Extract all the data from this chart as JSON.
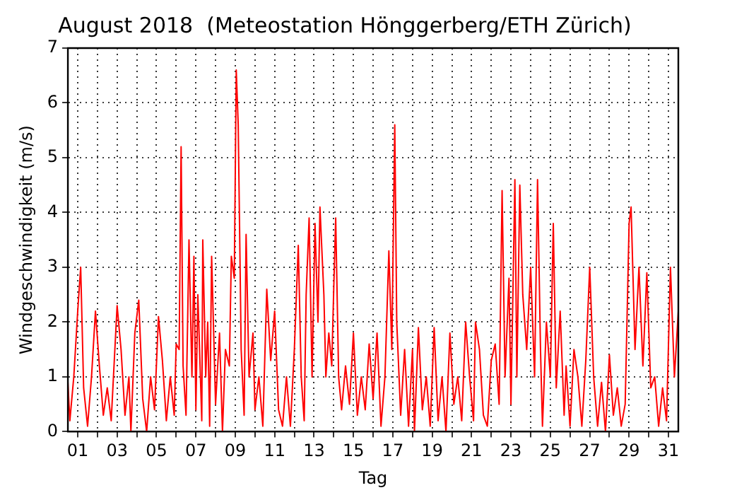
{
  "chart_data": {
    "type": "line",
    "title": "August 2018  (Meteostation Hönggerberg/ETH Zürich)",
    "xlabel": "Tag",
    "ylabel": "Windgeschwindigkeit (m/s)",
    "xlim": [
      0.5,
      31.5
    ],
    "ylim": [
      0,
      7
    ],
    "yticks": [
      0,
      1,
      2,
      3,
      4,
      5,
      6,
      7
    ],
    "xticks": [
      {
        "value": 1,
        "label": "01"
      },
      {
        "value": 2,
        "label": null
      },
      {
        "value": 3,
        "label": "03"
      },
      {
        "value": 4,
        "label": null
      },
      {
        "value": 5,
        "label": "05"
      },
      {
        "value": 6,
        "label": null
      },
      {
        "value": 7,
        "label": "07"
      },
      {
        "value": 8,
        "label": null
      },
      {
        "value": 9,
        "label": "09"
      },
      {
        "value": 10,
        "label": null
      },
      {
        "value": 11,
        "label": "11"
      },
      {
        "value": 12,
        "label": null
      },
      {
        "value": 13,
        "label": "13"
      },
      {
        "value": 14,
        "label": null
      },
      {
        "value": 15,
        "label": "15"
      },
      {
        "value": 16,
        "label": null
      },
      {
        "value": 17,
        "label": "17"
      },
      {
        "value": 18,
        "label": null
      },
      {
        "value": 19,
        "label": "19"
      },
      {
        "value": 20,
        "label": null
      },
      {
        "value": 21,
        "label": "21"
      },
      {
        "value": 22,
        "label": null
      },
      {
        "value": 23,
        "label": "23"
      },
      {
        "value": 24,
        "label": null
      },
      {
        "value": 25,
        "label": "25"
      },
      {
        "value": 26,
        "label": null
      },
      {
        "value": 27,
        "label": "27"
      },
      {
        "value": 28,
        "label": null
      },
      {
        "value": 29,
        "label": "29"
      },
      {
        "value": 30,
        "label": null
      },
      {
        "value": 31,
        "label": "31"
      }
    ],
    "grid": true,
    "legend": false,
    "marker": "none",
    "line_style": "solid",
    "series": [
      {
        "color": "#ff0000",
        "x": [
          0.5,
          0.6,
          0.8,
          1.0,
          1.15,
          1.3,
          1.5,
          1.7,
          1.9,
          2.1,
          2.3,
          2.5,
          2.7,
          3.0,
          3.2,
          3.4,
          3.6,
          3.7,
          3.9,
          4.1,
          4.3,
          4.5,
          4.7,
          4.9,
          5.1,
          5.3,
          5.5,
          5.7,
          5.9,
          6.0,
          6.15,
          6.25,
          6.35,
          6.5,
          6.65,
          6.8,
          6.9,
          7.0,
          7.1,
          7.3,
          7.35,
          7.5,
          7.6,
          7.7,
          7.8,
          8.0,
          8.2,
          8.35,
          8.5,
          8.7,
          8.8,
          8.95,
          9.05,
          9.15,
          9.3,
          9.45,
          9.55,
          9.7,
          9.9,
          10.0,
          10.2,
          10.4,
          10.6,
          10.8,
          11.0,
          11.2,
          11.4,
          11.6,
          11.8,
          12.0,
          12.2,
          12.35,
          12.5,
          12.6,
          12.75,
          12.9,
          13.05,
          13.2,
          13.3,
          13.5,
          13.6,
          13.75,
          13.9,
          14.0,
          14.1,
          14.25,
          14.4,
          14.6,
          14.8,
          15.0,
          15.2,
          15.4,
          15.6,
          15.8,
          16.0,
          16.2,
          16.4,
          16.6,
          16.8,
          16.95,
          17.1,
          17.2,
          17.4,
          17.6,
          17.8,
          18.0,
          18.1,
          18.3,
          18.5,
          18.7,
          18.9,
          19.1,
          19.3,
          19.5,
          19.7,
          19.9,
          20.1,
          20.3,
          20.5,
          20.7,
          20.9,
          21.1,
          21.2,
          21.4,
          21.6,
          21.8,
          22.0,
          22.2,
          22.4,
          22.55,
          22.7,
          22.9,
          23.0,
          23.2,
          23.3,
          23.45,
          23.6,
          23.8,
          24.0,
          24.2,
          24.35,
          24.5,
          24.6,
          24.8,
          25.0,
          25.15,
          25.3,
          25.5,
          25.7,
          25.8,
          26.0,
          26.2,
          26.4,
          26.6,
          26.8,
          27.0,
          27.2,
          27.4,
          27.6,
          27.8,
          28.0,
          28.2,
          28.4,
          28.6,
          28.8,
          29.0,
          29.1,
          29.3,
          29.5,
          29.7,
          29.9,
          30.1,
          30.3,
          30.5,
          30.7,
          30.9,
          31.1,
          31.3,
          31.5
        ],
        "values": [
          0.9,
          0.2,
          1.0,
          2.2,
          3.0,
          0.8,
          0.1,
          1.0,
          2.2,
          1.2,
          0.3,
          0.8,
          0.2,
          2.3,
          1.5,
          0.3,
          1.0,
          0.0,
          1.8,
          2.4,
          0.6,
          0.0,
          1.0,
          0.4,
          2.1,
          1.3,
          0.2,
          1.0,
          0.3,
          1.6,
          1.5,
          5.2,
          1.2,
          0.3,
          3.5,
          1.0,
          3.2,
          0.4,
          2.5,
          0.2,
          3.5,
          1.0,
          2.0,
          0.1,
          3.2,
          0.5,
          1.8,
          0.0,
          1.5,
          1.2,
          3.2,
          2.8,
          6.6,
          5.6,
          1.5,
          0.3,
          3.6,
          1.0,
          1.8,
          0.4,
          1.0,
          0.1,
          2.6,
          1.3,
          2.2,
          0.4,
          0.1,
          1.0,
          0.1,
          1.5,
          3.4,
          1.0,
          0.2,
          2.5,
          3.9,
          1.0,
          3.8,
          2.0,
          4.1,
          2.5,
          1.0,
          1.8,
          1.2,
          2.6,
          3.9,
          1.0,
          0.4,
          1.2,
          0.5,
          1.8,
          0.3,
          1.0,
          0.4,
          1.6,
          0.6,
          1.8,
          0.1,
          1.0,
          3.3,
          1.5,
          5.6,
          2.0,
          0.3,
          1.5,
          0.1,
          1.5,
          0.0,
          1.9,
          0.4,
          1.0,
          0.1,
          1.9,
          0.2,
          1.0,
          0.0,
          1.8,
          0.5,
          1.0,
          0.2,
          2.0,
          1.0,
          0.2,
          2.0,
          1.5,
          0.3,
          0.1,
          1.3,
          1.6,
          0.5,
          4.4,
          1.0,
          2.8,
          0.5,
          4.6,
          1.0,
          4.5,
          2.5,
          1.5,
          3.0,
          1.0,
          4.6,
          1.5,
          0.1,
          2.0,
          1.0,
          3.8,
          0.8,
          2.2,
          0.3,
          1.2,
          0.1,
          1.5,
          1.0,
          0.1,
          1.3,
          3.0,
          1.0,
          0.1,
          0.9,
          0.0,
          1.4,
          0.3,
          0.8,
          0.1,
          0.5,
          3.8,
          4.1,
          1.5,
          3.0,
          1.2,
          2.9,
          0.8,
          1.0,
          0.1,
          0.8,
          0.2,
          3.0,
          1.0,
          2.2
        ]
      }
    ]
  }
}
